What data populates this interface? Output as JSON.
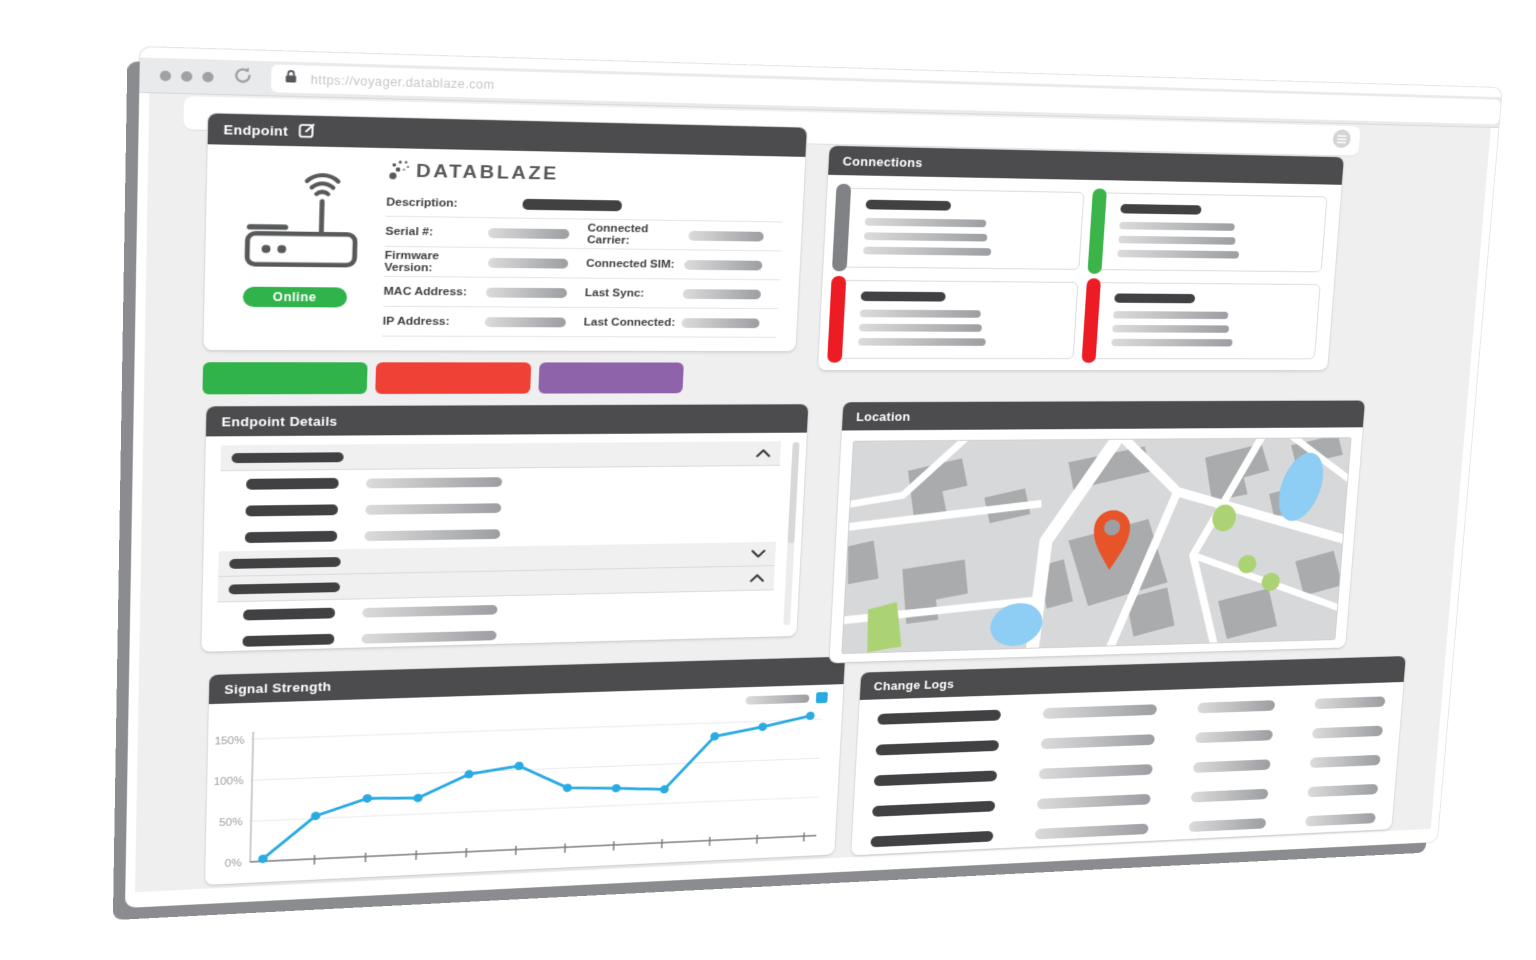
{
  "browser": {
    "url": "https://voyager.datablaze.com"
  },
  "colors": {
    "header_bar": "#4c4c4e",
    "online_green": "#2fb34a",
    "button_green": "#2fb34a",
    "button_red": "#ef4136",
    "button_purple": "#8f63a9",
    "connection_gray": "#808285",
    "connection_green": "#3bb54a",
    "connection_red": "#ed1c24",
    "chart_blue": "#29abe2",
    "map_pin_orange": "#e8542a"
  },
  "endpoint": {
    "title": "Endpoint",
    "logo": "DATABLAZE",
    "status": "Online",
    "description_label": "Description:",
    "rows": [
      {
        "left": "Serial #:",
        "right": "Connected Carrier:"
      },
      {
        "left": "Firmware Version:",
        "right": "Connected SIM:"
      },
      {
        "left": "MAC Address:",
        "right": "Last Sync:"
      },
      {
        "left": "IP Address:",
        "right": "Last Connected:"
      }
    ]
  },
  "details": {
    "title": "Endpoint Details"
  },
  "connections": {
    "title": "Connections",
    "card_accent_colors": [
      "#808285",
      "#3bb54a",
      "#ed1c24",
      "#ed1c24"
    ]
  },
  "location": {
    "title": "Location"
  },
  "change_logs": {
    "title": "Change Logs"
  },
  "chart_data": {
    "type": "line",
    "title": "Signal Strength",
    "series": [
      {
        "name": "Signal Strength",
        "color": "#29abe2",
        "values": [
          3,
          53,
          72,
          70,
          97,
          105,
          75,
          72,
          68,
          133,
          143,
          155
        ]
      }
    ],
    "y_ticks": [
      {
        "label": "0%",
        "value": 0
      },
      {
        "label": "50%",
        "value": 50
      },
      {
        "label": "100%",
        "value": 100
      },
      {
        "label": "150%",
        "value": 150
      }
    ],
    "ylim": [
      0,
      160
    ],
    "x_count": 12,
    "grid": true,
    "legend_position": "top-right"
  }
}
